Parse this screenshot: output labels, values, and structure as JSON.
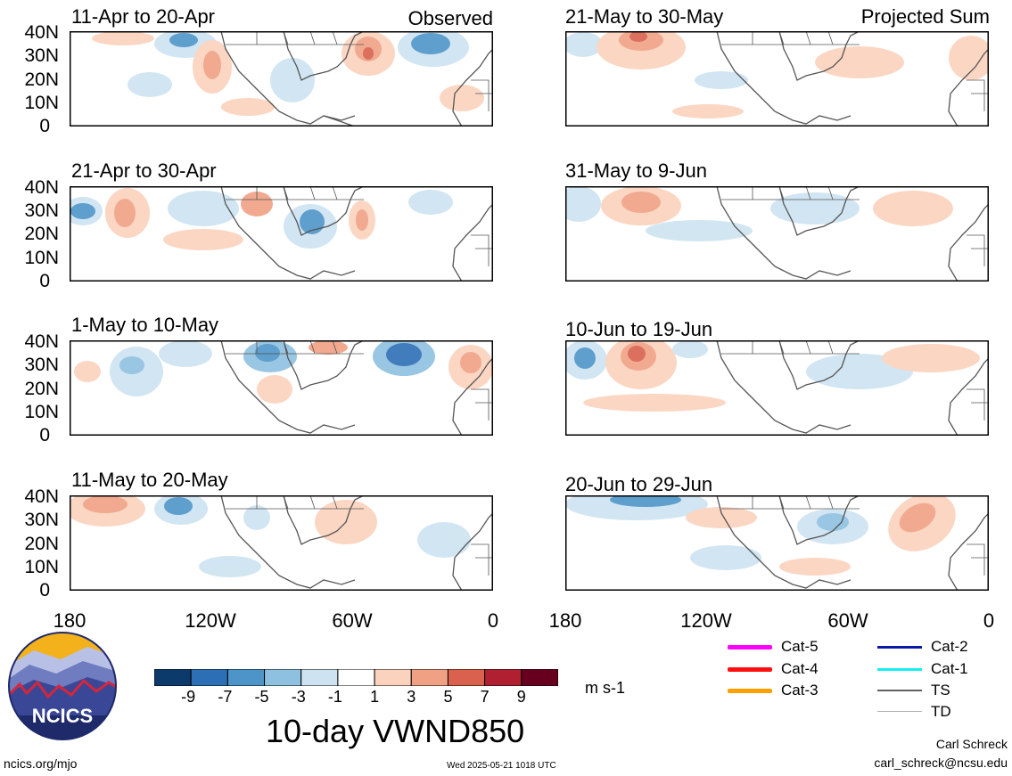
{
  "panels": [
    {
      "label": "11-Apr to 20-Apr",
      "corner": "Observed"
    },
    {
      "label": "21-Apr to 30-Apr",
      "corner": ""
    },
    {
      "label": "1-May to 10-May",
      "corner": ""
    },
    {
      "label": "11-May to 20-May",
      "corner": ""
    },
    {
      "label": "21-May to 30-May",
      "corner": "Projected Sum"
    },
    {
      "label": "31-May to 9-Jun",
      "corner": ""
    },
    {
      "label": "10-Jun to 19-Jun",
      "corner": ""
    },
    {
      "label": "20-Jun to 29-Jun",
      "corner": ""
    }
  ],
  "yticks": [
    "40N",
    "30N",
    "20N",
    "10N",
    "0"
  ],
  "xticks": [
    "180",
    "120W",
    "60W",
    "0"
  ],
  "colorbar": {
    "ticks": [
      "-9",
      "-7",
      "-5",
      "-3",
      "-1",
      "1",
      "3",
      "5",
      "7",
      "9"
    ],
    "colors": [
      "#0b3a6b",
      "#2d6fb5",
      "#4d95c9",
      "#8ec0df",
      "#cde3f1",
      "#ffffff",
      "#fbd2bd",
      "#f0a184",
      "#d9614e",
      "#b12030",
      "#67001f"
    ],
    "units": "m s-1",
    "title": "10-day VWND850"
  },
  "legend": [
    {
      "label": "Cat-5",
      "color": "#ff00ff"
    },
    {
      "label": "Cat-4",
      "color": "#ff1010"
    },
    {
      "label": "Cat-3",
      "color": "#ffa000"
    },
    {
      "label": "Cat-2",
      "color": "#0a1aa8"
    },
    {
      "label": "Cat-1",
      "color": "#14f0f0"
    },
    {
      "label": "TS",
      "color": "#606060"
    },
    {
      "label": "TD",
      "color": "#b0b0b0"
    }
  ],
  "logo": {
    "text": "NCICS"
  },
  "footer": {
    "url": "ncics.org/mjo",
    "timestamp": "Wed 2025-05-21 1018 UTC",
    "author": "Carl Schreck",
    "email": "carl_schreck@ncsu.edu"
  },
  "colors": {
    "positive": "#f0a184",
    "negative": "#4d95c9",
    "coast": "#555555"
  }
}
